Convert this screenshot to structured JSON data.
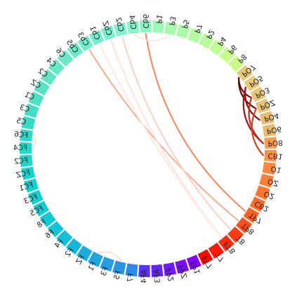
{
  "nodes": [
    {
      "label": "Cb2",
      "color": "#7ff2cd"
    },
    {
      "label": "Cb4",
      "color": "#85f4c8"
    },
    {
      "label": "Cb6",
      "color": "#8cf6c2"
    },
    {
      "label": "P1",
      "color": "#9ef8b4"
    },
    {
      "label": "P3",
      "color": "#a6f9ad"
    },
    {
      "label": "P5",
      "color": "#acfaa7"
    },
    {
      "label": "P7",
      "color": "#b3fba1"
    },
    {
      "label": "P2",
      "color": "#b9fb9b"
    },
    {
      "label": "P4",
      "color": "#c0fb95"
    },
    {
      "label": "P6",
      "color": "#c6fb8e"
    },
    {
      "label": "P8",
      "color": "#ccfa88"
    },
    {
      "label": "PO7",
      "color": "#e8c979"
    },
    {
      "label": "PO5",
      "color": "#e8c779"
    },
    {
      "label": "PO3",
      "color": "#e9c476"
    },
    {
      "label": "POZ",
      "color": "#eac072"
    },
    {
      "label": "PO4",
      "color": "#ebbc6f"
    },
    {
      "label": "PO6",
      "color": "#ecb86b"
    },
    {
      "label": "PO8",
      "color": "#ff9a51"
    },
    {
      "label": "CB1",
      "color": "#ff9148"
    },
    {
      "label": "O1",
      "color": "#ff8840"
    },
    {
      "label": "OZ",
      "color": "#ff7f38"
    },
    {
      "label": "O2",
      "color": "#ff7530"
    },
    {
      "label": "CB2",
      "color": "#ff6b28"
    },
    {
      "label": "TP7",
      "color": "#ff6120"
    },
    {
      "label": "TP8",
      "color": "#ff4f1a"
    },
    {
      "label": "T8",
      "color": "#ff3d14"
    },
    {
      "label": "FT8",
      "color": "#ff2b0e"
    },
    {
      "label": "T7",
      "color": "#ff1908"
    },
    {
      "label": "FT7",
      "color": "#ff0803"
    },
    {
      "label": "FP1",
      "color": "#8400ff"
    },
    {
      "label": "FPZ",
      "color": "#7a0bfe"
    },
    {
      "label": "FP2",
      "color": "#7117fd"
    },
    {
      "label": "AF3",
      "color": "#6623fb"
    },
    {
      "label": "AF4",
      "color": "#5b30f8"
    },
    {
      "label": "F7",
      "color": "#2f8ae9"
    },
    {
      "label": "F5",
      "color": "#2a93e6"
    },
    {
      "label": "F3",
      "color": "#259ce3"
    },
    {
      "label": "F1",
      "color": "#20a5e0"
    },
    {
      "label": "FZ",
      "color": "#1baedd"
    },
    {
      "label": "F2",
      "color": "#16b7da"
    },
    {
      "label": "F4",
      "color": "#11c0d7"
    },
    {
      "label": "F6",
      "color": "#0ec6d5"
    },
    {
      "label": "F8",
      "color": "#0ecad3"
    },
    {
      "label": "FC5",
      "color": "#0ecdd2"
    },
    {
      "label": "FC3",
      "color": "#0ed0d0"
    },
    {
      "label": "FC1",
      "color": "#10d3cf"
    },
    {
      "label": "FCZ",
      "color": "#13d5cd"
    },
    {
      "label": "FC2",
      "color": "#18d7cb"
    },
    {
      "label": "FC4",
      "color": "#20d9c9"
    },
    {
      "label": "FC6",
      "color": "#2adbc7"
    },
    {
      "label": "C5",
      "color": "#36ddc6"
    },
    {
      "label": "C3",
      "color": "#42dfc5"
    },
    {
      "label": "C1",
      "color": "#4ee1c4"
    },
    {
      "label": "CZ",
      "color": "#58e3c4"
    },
    {
      "label": "C2",
      "color": "#60e5c4"
    },
    {
      "label": "C4",
      "color": "#66e7c5"
    },
    {
      "label": "C6",
      "color": "#6ae9c6"
    },
    {
      "label": "Cb5",
      "color": "#6deac7"
    },
    {
      "label": "Cb3",
      "color": "#70ecc8"
    },
    {
      "label": "Cb1",
      "color": "#73eec9"
    },
    {
      "label": "CbZ",
      "color": "#78f0cb"
    }
  ],
  "links": [
    {
      "from": "PO7",
      "to": "PO3",
      "color": "#7a0a0a"
    },
    {
      "from": "PO7",
      "to": "POZ",
      "color": "#6e0000"
    },
    {
      "from": "PO5",
      "to": "PO4",
      "color": "#8b0d0d"
    },
    {
      "from": "PO5",
      "to": "PO8",
      "color": "#a31414"
    },
    {
      "from": "PO3",
      "to": "PO8",
      "color": "#c0311a"
    },
    {
      "from": "CB1",
      "to": "POZ",
      "color": "#d04420"
    },
    {
      "from": "TP7",
      "to": "Cb6",
      "color": "#f0906a"
    },
    {
      "from": "TP8",
      "to": "Cb3",
      "color": "#f4b49a"
    },
    {
      "from": "T8",
      "to": "Cb2",
      "color": "#fad5c8"
    },
    {
      "from": "FT8",
      "to": "CbZ",
      "color": "#fde6df"
    },
    {
      "from": "FT8",
      "to": "Cb1",
      "color": "#fdebe4"
    },
    {
      "from": "F5",
      "to": "F1",
      "color": "#fbe3da"
    },
    {
      "from": "FC4",
      "to": "FC6",
      "color": "#fbe3da"
    },
    {
      "from": "Cb4",
      "to": "P3",
      "color": "#fbe8e2"
    }
  ]
}
